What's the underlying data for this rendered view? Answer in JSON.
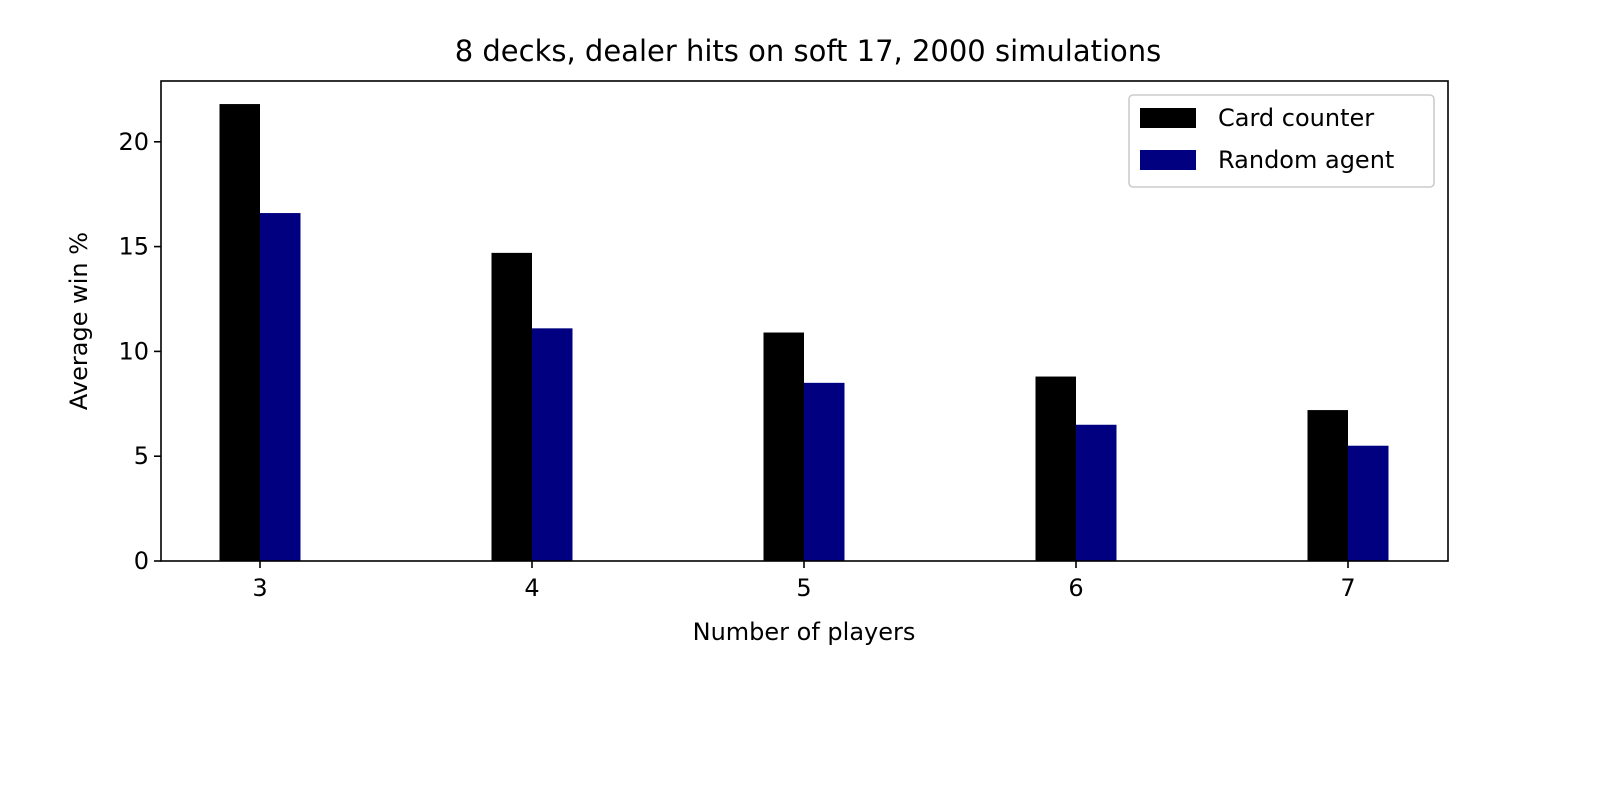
{
  "chart_data": {
    "type": "bar",
    "title": "8 decks, dealer hits on soft 17, 2000 simulations",
    "xlabel": "Number of players",
    "ylabel": "Average win %",
    "categories": [
      "3",
      "4",
      "5",
      "6",
      "7"
    ],
    "series": [
      {
        "name": "Card counter",
        "color": "#000000",
        "values": [
          21.8,
          14.7,
          10.9,
          8.8,
          7.2
        ]
      },
      {
        "name": "Random agent",
        "color": "#000080",
        "values": [
          16.6,
          11.1,
          8.5,
          6.5,
          5.5
        ]
      }
    ],
    "ylim": [
      0,
      22.9
    ],
    "yticks": [
      0,
      5,
      10,
      15,
      20
    ],
    "grid": false,
    "legend_position": "top-right"
  }
}
